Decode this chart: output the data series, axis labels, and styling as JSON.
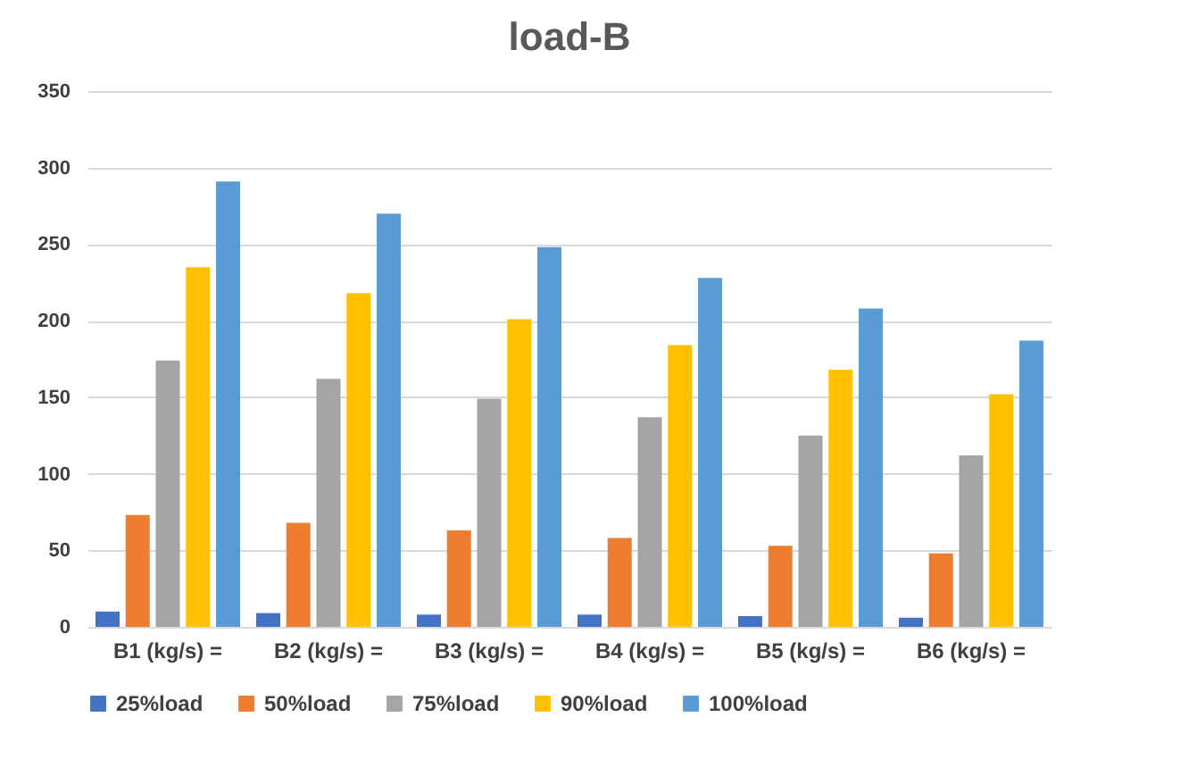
{
  "chart_data": {
    "type": "bar",
    "title": "load-B",
    "categories": [
      "B1 (kg/s) =",
      "B2 (kg/s) =",
      "B3 (kg/s) =",
      "B4 (kg/s) =",
      "B5 (kg/s) =",
      "B6 (kg/s) ="
    ],
    "series": [
      {
        "name": "25%load",
        "color": "#4472c4",
        "values": [
          10,
          9,
          8,
          8,
          7,
          6
        ]
      },
      {
        "name": "50%load",
        "color": "#ed7d31",
        "values": [
          73,
          68,
          63,
          58,
          53,
          48
        ]
      },
      {
        "name": "75%load",
        "color": "#a5a5a5",
        "values": [
          174,
          162,
          149,
          137,
          125,
          112
        ]
      },
      {
        "name": "90%load",
        "color": "#ffc000",
        "values": [
          235,
          218,
          201,
          184,
          168,
          152
        ]
      },
      {
        "name": "100%load",
        "color": "#5b9bd5",
        "values": [
          291,
          270,
          248,
          228,
          208,
          187
        ]
      }
    ],
    "ylim": [
      0,
      350
    ],
    "yticks": [
      0,
      50,
      100,
      150,
      200,
      250,
      300,
      350
    ],
    "grid": "y",
    "legend": "bottom"
  }
}
